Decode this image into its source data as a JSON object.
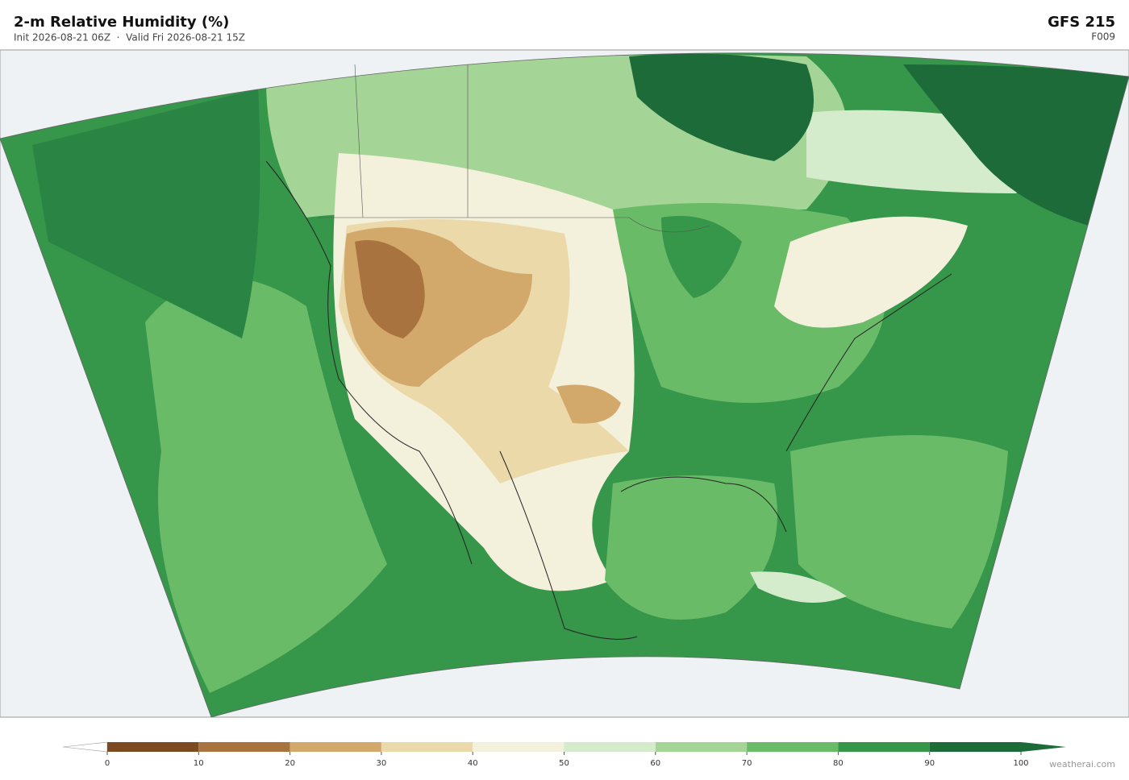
{
  "header": {
    "title": "2-m Relative Humidity  (%)",
    "subtitle": "Init 2026-08-21 06Z  ·  Valid Fri 2026-08-21 15Z",
    "model": "GFS  215",
    "forecast_hour": "F009"
  },
  "colorbar": {
    "ticks": [
      0,
      10,
      20,
      30,
      40,
      50,
      60,
      70,
      80,
      90,
      100
    ],
    "colors": [
      "#7b4a20",
      "#a8733f",
      "#d3a96b",
      "#ecd9aa",
      "#f3f0dc",
      "#d4ebcc",
      "#a5d596",
      "#69bb68",
      "#36964a",
      "#1c6b39"
    ],
    "under_color": "#ffffff",
    "over_color": "#1c6b39"
  },
  "footer": {
    "credit": "weatherai.com"
  }
}
